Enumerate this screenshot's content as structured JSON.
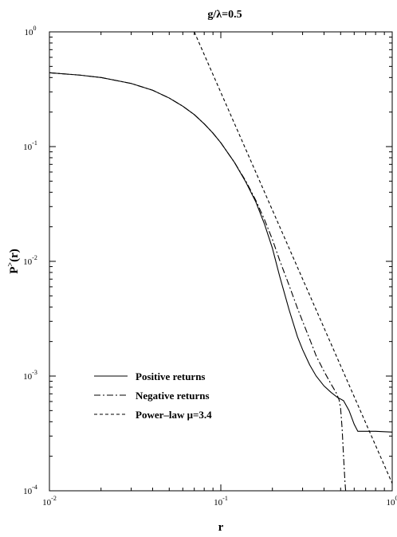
{
  "chart_data": {
    "type": "line",
    "title": "g/λ=0.5",
    "xlabel": "r",
    "ylabel": "P>(r)",
    "xscale": "log",
    "yscale": "log",
    "xlim": [
      0.01,
      1
    ],
    "ylim": [
      0.0001,
      1
    ],
    "grid": false,
    "legend_position": "bottom-left",
    "x_ticks": [
      {
        "value": 0.01,
        "base": "10",
        "exp": "-2"
      },
      {
        "value": 0.1,
        "base": "10",
        "exp": "-1"
      },
      {
        "value": 1,
        "base": "10",
        "exp": "0"
      }
    ],
    "y_ticks": [
      {
        "value": 1,
        "base": "10",
        "exp": "0"
      },
      {
        "value": 0.1,
        "base": "10",
        "exp": "-1"
      },
      {
        "value": 0.01,
        "base": "10",
        "exp": "-2"
      },
      {
        "value": 0.001,
        "base": "10",
        "exp": "-3"
      },
      {
        "value": 0.0001,
        "base": "10",
        "exp": "-4"
      }
    ],
    "series": [
      {
        "name": "Positive returns",
        "dash": "solid",
        "points": [
          [
            0.01,
            0.44
          ],
          [
            0.015,
            0.42
          ],
          [
            0.02,
            0.4
          ],
          [
            0.03,
            0.355
          ],
          [
            0.04,
            0.31
          ],
          [
            0.05,
            0.265
          ],
          [
            0.06,
            0.225
          ],
          [
            0.07,
            0.19
          ],
          [
            0.08,
            0.158
          ],
          [
            0.09,
            0.131
          ],
          [
            0.1,
            0.108
          ],
          [
            0.12,
            0.073
          ],
          [
            0.14,
            0.049
          ],
          [
            0.16,
            0.033
          ],
          [
            0.18,
            0.021
          ],
          [
            0.2,
            0.013
          ],
          [
            0.22,
            0.0075
          ],
          [
            0.25,
            0.0038
          ],
          [
            0.28,
            0.0022
          ],
          [
            0.3,
            0.0017
          ],
          [
            0.33,
            0.00125
          ],
          [
            0.36,
            0.001
          ],
          [
            0.4,
            0.00082
          ],
          [
            0.44,
            0.00072
          ],
          [
            0.48,
            0.00065
          ],
          [
            0.5,
            0.00063
          ],
          [
            0.52,
            0.00061
          ],
          [
            0.56,
            0.0005
          ],
          [
            0.6,
            0.00038
          ],
          [
            0.63,
            0.00033
          ],
          [
            0.7,
            0.00033
          ],
          [
            0.8,
            0.00033
          ],
          [
            1.0,
            0.000325
          ]
        ]
      },
      {
        "name": "Negative returns",
        "dash": "dashdot",
        "points": [
          [
            0.01,
            0.44
          ],
          [
            0.015,
            0.42
          ],
          [
            0.02,
            0.4
          ],
          [
            0.03,
            0.355
          ],
          [
            0.04,
            0.31
          ],
          [
            0.05,
            0.265
          ],
          [
            0.06,
            0.225
          ],
          [
            0.07,
            0.19
          ],
          [
            0.08,
            0.158
          ],
          [
            0.09,
            0.131
          ],
          [
            0.1,
            0.108
          ],
          [
            0.12,
            0.073
          ],
          [
            0.14,
            0.05
          ],
          [
            0.16,
            0.034
          ],
          [
            0.18,
            0.023
          ],
          [
            0.2,
            0.0155
          ],
          [
            0.22,
            0.0103
          ],
          [
            0.25,
            0.0062
          ],
          [
            0.28,
            0.0039
          ],
          [
            0.3,
            0.003
          ],
          [
            0.33,
            0.0021
          ],
          [
            0.36,
            0.0015
          ],
          [
            0.4,
            0.0011
          ],
          [
            0.44,
            0.00085
          ],
          [
            0.47,
            0.00072
          ],
          [
            0.49,
            0.00062
          ],
          [
            0.5,
            0.00052
          ],
          [
            0.51,
            0.00035
          ],
          [
            0.52,
            0.0002
          ],
          [
            0.53,
            0.00012
          ],
          [
            0.535,
            0.0001
          ]
        ]
      },
      {
        "name": "Power–law μ=3.4",
        "dash": "dashed",
        "points": [
          [
            0.07,
            1.0
          ],
          [
            1.0,
            0.000116
          ]
        ]
      }
    ]
  }
}
